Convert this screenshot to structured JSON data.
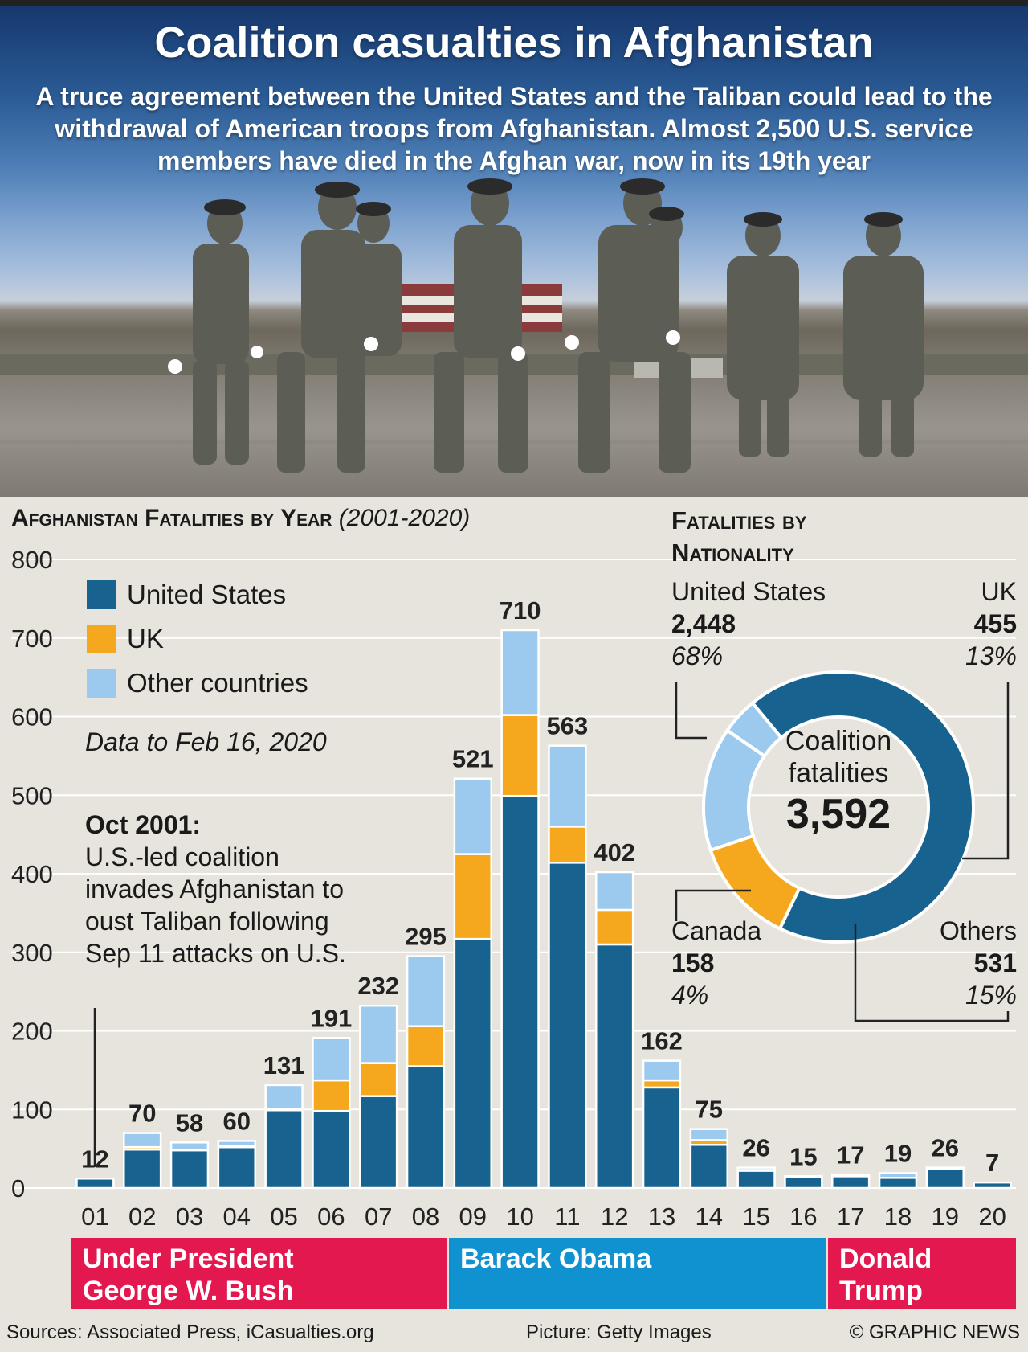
{
  "hero": {
    "title": "Coalition casualties in Afghanistan",
    "subtitle": "A truce agreement between the United States and the Taliban could lead to the withdrawal of American troops from Afghanistan. Almost 2,500 U.S. service members have died in the Afghan war, now in its 19th year"
  },
  "bar_section": {
    "title": "Afghanistan Fatalities by Year",
    "title_range": "(2001-2020)",
    "data_note": "Data to Feb 16, 2020",
    "annotation_head": "Oct 2001:",
    "annotation_body": "U.S.-led coalition invades Afghanistan to oust Taliban following Sep 11 attacks on U.S."
  },
  "colors": {
    "us": "#17628f",
    "uk": "#f5a81e",
    "other": "#9ccaee",
    "bush": "#e2184e",
    "obama": "#1091d0",
    "trump": "#e2184e"
  },
  "presidents": [
    {
      "label_l1": "Under President",
      "label_l2": "George W. Bush"
    },
    {
      "label_l1": "Barack Obama",
      "label_l2": ""
    },
    {
      "label_l1": "Donald",
      "label_l2": "Trump"
    }
  ],
  "chart_data": [
    {
      "type": "bar",
      "stacked": true,
      "title": "Afghanistan Fatalities by Year (2001-2020)",
      "categories": [
        "01",
        "02",
        "03",
        "04",
        "05",
        "06",
        "07",
        "08",
        "09",
        "10",
        "11",
        "12",
        "13",
        "14",
        "15",
        "16",
        "17",
        "18",
        "19",
        "20"
      ],
      "series": [
        {
          "name": "United States",
          "values": [
            12,
            49,
            48,
            52,
            99,
            98,
            117,
            155,
            317,
            499,
            414,
            310,
            128,
            55,
            22,
            14,
            15,
            13,
            24,
            7
          ]
        },
        {
          "name": "UK",
          "values": [
            0,
            3,
            0,
            1,
            1,
            39,
            42,
            51,
            108,
            103,
            46,
            44,
            9,
            6,
            1,
            0,
            0,
            0,
            0,
            0
          ]
        },
        {
          "name": "Other countries",
          "values": [
            0,
            18,
            10,
            7,
            31,
            54,
            73,
            89,
            96,
            108,
            103,
            48,
            25,
            14,
            3,
            1,
            2,
            6,
            2,
            0
          ]
        }
      ],
      "totals": [
        12,
        70,
        58,
        60,
        131,
        191,
        232,
        295,
        521,
        710,
        563,
        402,
        162,
        75,
        26,
        15,
        17,
        19,
        26,
        7
      ],
      "ylim": [
        0,
        800
      ],
      "yticks": [
        0,
        100,
        200,
        300,
        400,
        500,
        600,
        700,
        800
      ],
      "legend": "top-left"
    },
    {
      "type": "pie",
      "title": "Fatalities by Nationality",
      "center_label_l1": "Coalition",
      "center_label_l2": "fatalities",
      "center_value": "3,592",
      "slices": [
        {
          "name": "United States",
          "value": 2448,
          "value_label": "2,448",
          "percent": "68%"
        },
        {
          "name": "UK",
          "value": 455,
          "value_label": "455",
          "percent": "13%"
        },
        {
          "name": "Others",
          "value": 531,
          "value_label": "531",
          "percent": "15%"
        },
        {
          "name": "Canada",
          "value": 158,
          "value_label": "158",
          "percent": "4%"
        }
      ]
    }
  ],
  "footer": {
    "sources": "Sources: Associated Press, iCasualties.org",
    "picture": "Picture: Getty Images",
    "credit": "© GRAPHIC NEWS"
  }
}
